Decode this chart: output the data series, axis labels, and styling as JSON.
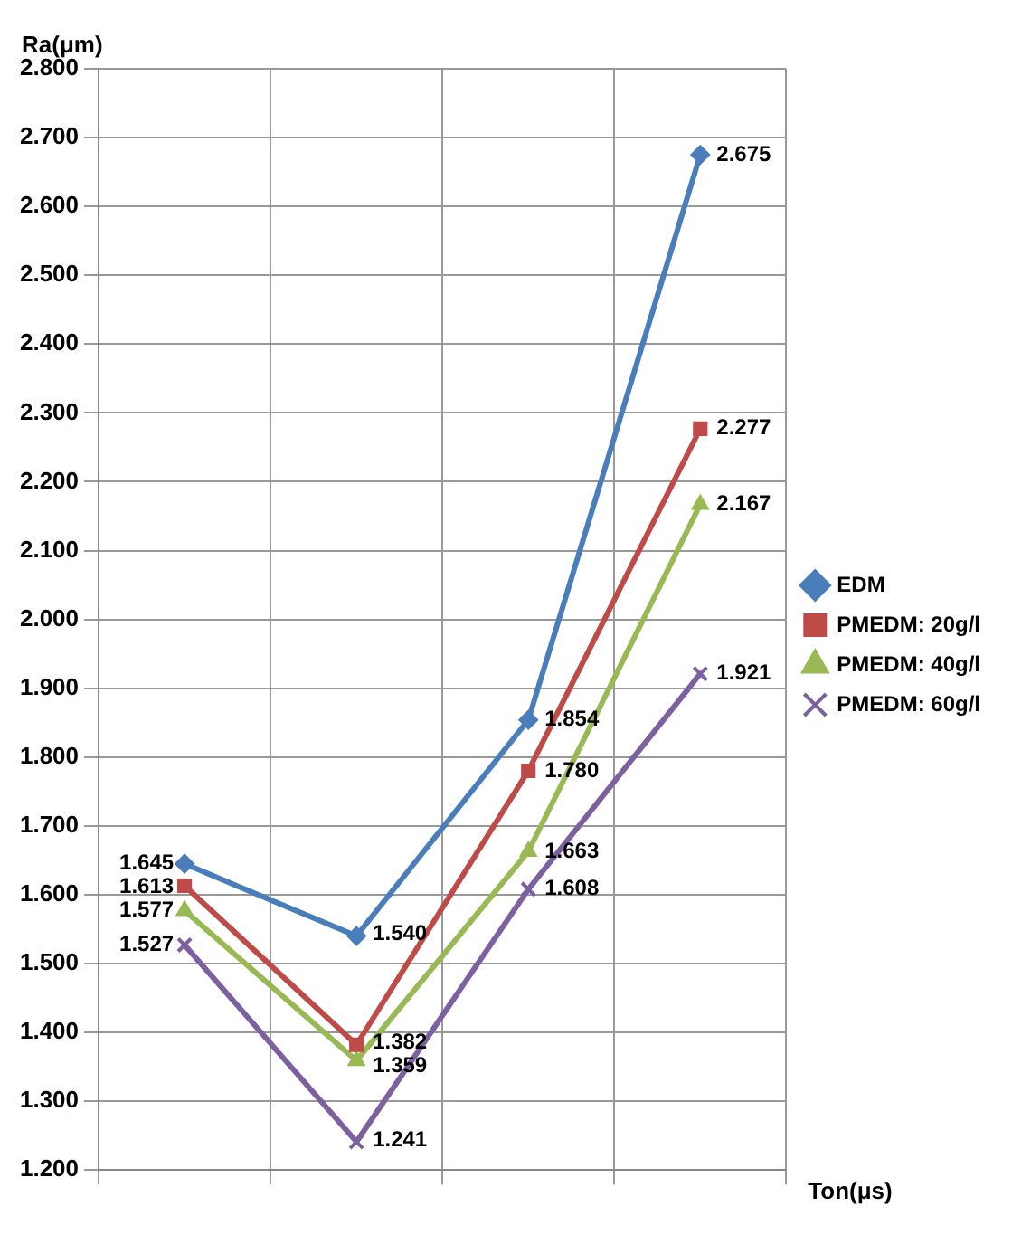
{
  "chart_data": {
    "type": "line",
    "ylabel": "Ra(μm)",
    "xlabel": "Ton(μs)",
    "categories": [
      null,
      null,
      null,
      null
    ],
    "series": [
      {
        "name": "EDM",
        "color": "#4a7ebb",
        "marker": "diamond",
        "values": [
          1.645,
          1.54,
          1.854,
          2.675
        ],
        "value_labels": [
          "1.645",
          "1.540",
          "1.854",
          "2.675"
        ]
      },
      {
        "name": "PMEDM: 20g/l",
        "color": "#be4b48",
        "marker": "square",
        "values": [
          1.613,
          1.382,
          1.78,
          2.277
        ],
        "value_labels": [
          "1.613",
          "1.382",
          "1.780",
          "2.277"
        ]
      },
      {
        "name": "PMEDM: 40g/l",
        "color": "#98b954",
        "marker": "triangle",
        "values": [
          1.577,
          1.359,
          1.663,
          2.167
        ],
        "value_labels": [
          "1.577",
          "1.359",
          "1.663",
          "2.167"
        ]
      },
      {
        "name": "PMEDM: 60g/l",
        "color": "#7d60a0",
        "marker": "cross",
        "values": [
          1.527,
          1.241,
          1.608,
          1.921
        ],
        "value_labels": [
          "1.527",
          "1.241",
          "1.608",
          "1.921"
        ]
      }
    ],
    "ylim": [
      1.2,
      2.8
    ],
    "yticks": [
      {
        "value": 1.2,
        "label": "1.200"
      },
      {
        "value": 1.3,
        "label": "1.300"
      },
      {
        "value": 1.4,
        "label": "1.400"
      },
      {
        "value": 1.5,
        "label": "1.500"
      },
      {
        "value": 1.6,
        "label": "1.600"
      },
      {
        "value": 1.7,
        "label": "1.700"
      },
      {
        "value": 1.8,
        "label": "1.800"
      },
      {
        "value": 1.9,
        "label": "1.900"
      },
      {
        "value": 2.0,
        "label": "2.000"
      },
      {
        "value": 2.1,
        "label": "2.100"
      },
      {
        "value": 2.2,
        "label": "2.200"
      },
      {
        "value": 2.3,
        "label": "2.300"
      },
      {
        "value": 2.4,
        "label": "2.400"
      },
      {
        "value": 2.5,
        "label": "2.500"
      },
      {
        "value": 2.6,
        "label": "2.600"
      },
      {
        "value": 2.7,
        "label": "2.700"
      },
      {
        "value": 2.8,
        "label": "2.800"
      }
    ],
    "grid": true,
    "legend": "right",
    "line_style": "solid"
  }
}
